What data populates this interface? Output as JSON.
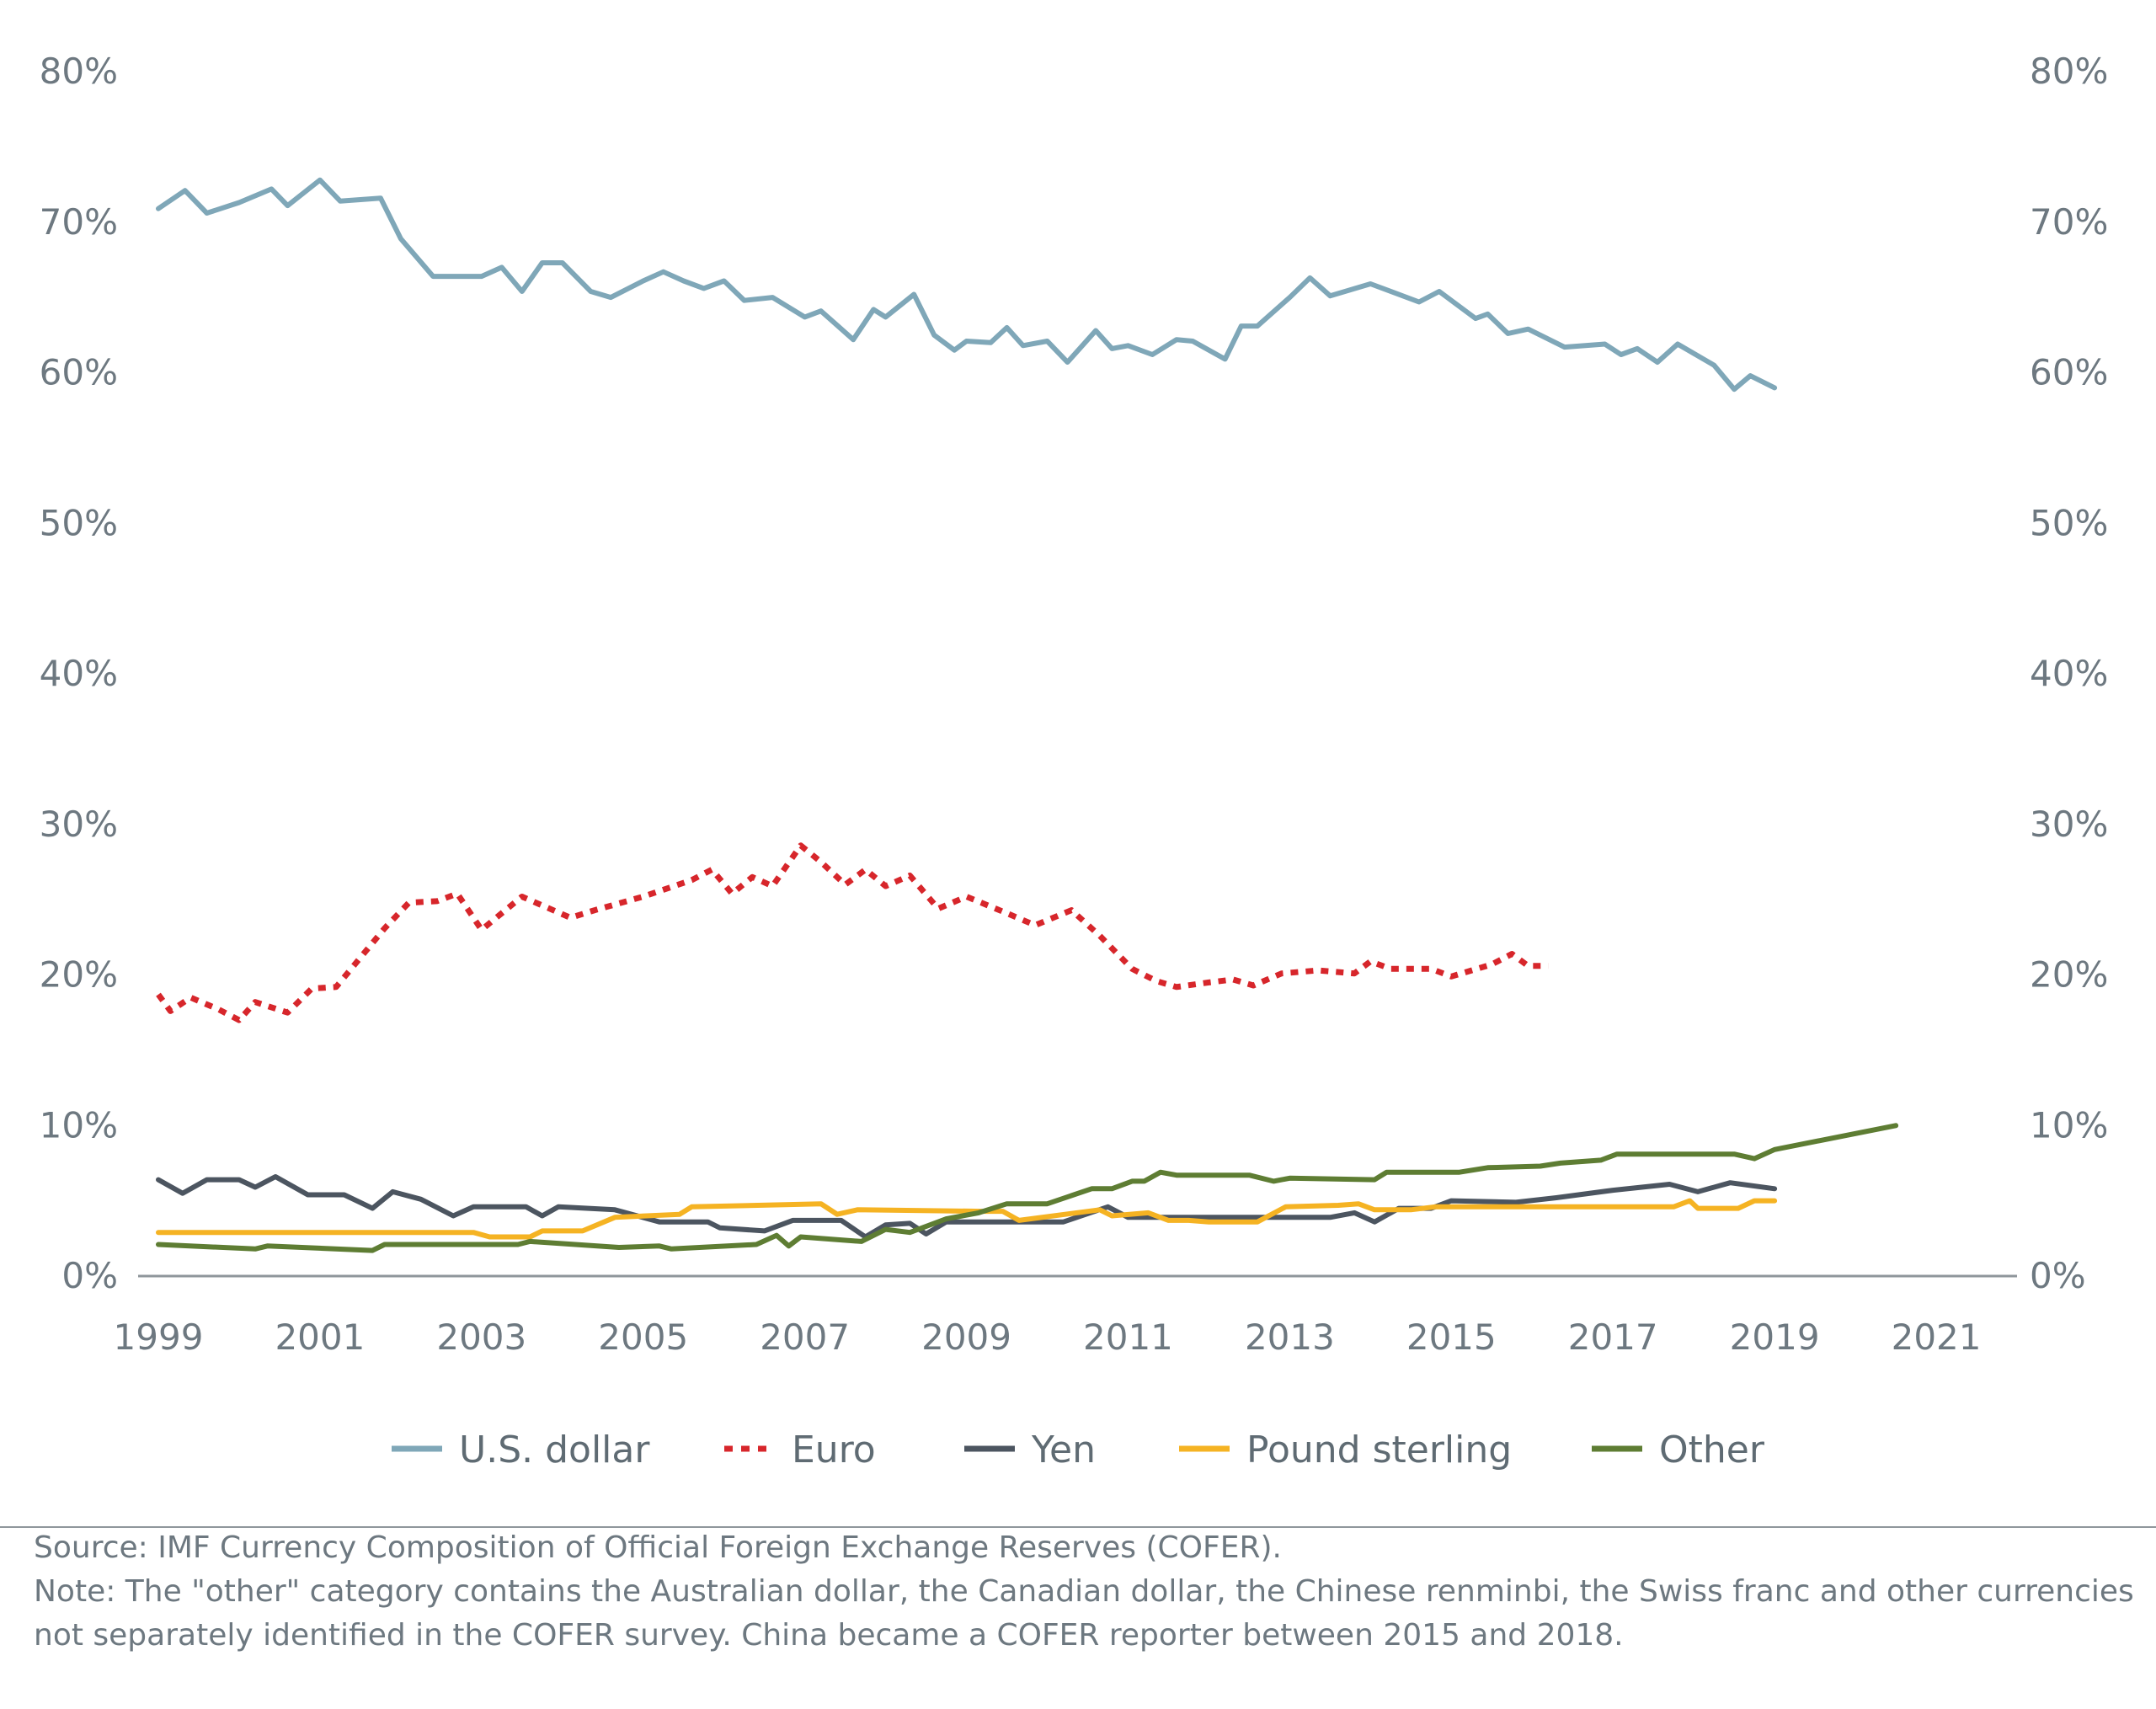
{
  "chart_data": {
    "type": "line",
    "title": "",
    "xlabel": "",
    "ylabel": "",
    "x_tick_labels": [
      "1999",
      "2001",
      "2003",
      "2005",
      "2007",
      "2009",
      "2011",
      "2013",
      "2015",
      "2017",
      "2019",
      "2021"
    ],
    "y_tick_labels": [
      "0%",
      "10%",
      "20%",
      "30%",
      "40%",
      "50%",
      "60%",
      "70%",
      "80%"
    ],
    "ylim": [
      0,
      80
    ],
    "xlim": [
      1998.75,
      2022.0
    ],
    "secondary_y_axis": true,
    "grid": false,
    "legend_position": "bottom",
    "series": [
      {
        "name": "U.S. dollar",
        "color": "#7fa7b8",
        "dash": "solid",
        "points": [
          [
            1999.0,
            70.9
          ],
          [
            1999.33,
            72.1
          ],
          [
            1999.6,
            70.6
          ],
          [
            2000.0,
            71.3
          ],
          [
            2000.4,
            72.2
          ],
          [
            2000.6,
            71.1
          ],
          [
            2001.0,
            72.8
          ],
          [
            2001.25,
            71.4
          ],
          [
            2001.75,
            71.6
          ],
          [
            2002.0,
            68.9
          ],
          [
            2002.4,
            66.4
          ],
          [
            2003.0,
            66.4
          ],
          [
            2003.25,
            67.0
          ],
          [
            2003.5,
            65.4
          ],
          [
            2003.75,
            67.3
          ],
          [
            2004.0,
            67.3
          ],
          [
            2004.35,
            65.4
          ],
          [
            2004.6,
            65.0
          ],
          [
            2005.0,
            66.1
          ],
          [
            2005.25,
            66.7
          ],
          [
            2005.5,
            66.1
          ],
          [
            2005.75,
            65.6
          ],
          [
            2006.0,
            66.1
          ],
          [
            2006.25,
            64.8
          ],
          [
            2006.6,
            65.0
          ],
          [
            2007.0,
            63.7
          ],
          [
            2007.2,
            64.1
          ],
          [
            2007.6,
            62.2
          ],
          [
            2007.85,
            64.2
          ],
          [
            2008.0,
            63.7
          ],
          [
            2008.35,
            65.2
          ],
          [
            2008.6,
            62.5
          ],
          [
            2008.85,
            61.5
          ],
          [
            2009.0,
            62.1
          ],
          [
            2009.3,
            62.0
          ],
          [
            2009.5,
            63.0
          ],
          [
            2009.7,
            61.8
          ],
          [
            2010.0,
            62.1
          ],
          [
            2010.25,
            60.7
          ],
          [
            2010.6,
            62.8
          ],
          [
            2010.8,
            61.6
          ],
          [
            2011.0,
            61.8
          ],
          [
            2011.3,
            61.2
          ],
          [
            2011.6,
            62.2
          ],
          [
            2011.8,
            62.1
          ],
          [
            2012.2,
            60.9
          ],
          [
            2012.4,
            63.1
          ],
          [
            2012.6,
            63.1
          ],
          [
            2013.0,
            65.0
          ],
          [
            2013.25,
            66.3
          ],
          [
            2013.5,
            65.1
          ],
          [
            2014.0,
            65.9
          ],
          [
            2014.6,
            64.7
          ],
          [
            2014.85,
            65.4
          ],
          [
            2015.3,
            63.6
          ],
          [
            2015.45,
            63.9
          ],
          [
            2015.7,
            62.6
          ],
          [
            2015.95,
            62.9
          ],
          [
            2016.4,
            61.7
          ],
          [
            2016.9,
            61.9
          ],
          [
            2017.1,
            61.2
          ],
          [
            2017.3,
            61.6
          ],
          [
            2017.55,
            60.7
          ],
          [
            2017.8,
            61.9
          ],
          [
            2018.25,
            60.5
          ],
          [
            2018.5,
            58.9
          ],
          [
            2018.7,
            59.8
          ],
          [
            2019.0,
            59.0
          ]
        ]
      },
      {
        "name": "Euro",
        "color": "#d7262b",
        "dash": "dotted",
        "points": [
          [
            1999.0,
            18.7
          ],
          [
            1999.15,
            17.6
          ],
          [
            1999.4,
            18.5
          ],
          [
            1999.75,
            17.7
          ],
          [
            2000.0,
            17.0
          ],
          [
            2000.2,
            18.2
          ],
          [
            2000.6,
            17.5
          ],
          [
            2000.9,
            19.1
          ],
          [
            2001.2,
            19.2
          ],
          [
            2001.8,
            23.1
          ],
          [
            2002.1,
            24.8
          ],
          [
            2002.45,
            24.9
          ],
          [
            2002.7,
            25.4
          ],
          [
            2003.0,
            23.0
          ],
          [
            2003.5,
            25.2
          ],
          [
            2004.1,
            23.8
          ],
          [
            2004.4,
            24.3
          ],
          [
            2005.0,
            25.2
          ],
          [
            2005.6,
            26.3
          ],
          [
            2005.85,
            27.0
          ],
          [
            2006.1,
            25.4
          ],
          [
            2006.35,
            26.5
          ],
          [
            2006.6,
            25.9
          ],
          [
            2006.95,
            28.6
          ],
          [
            2007.2,
            27.5
          ],
          [
            2007.5,
            26.0
          ],
          [
            2007.75,
            27.0
          ],
          [
            2008.0,
            25.9
          ],
          [
            2008.3,
            26.6
          ],
          [
            2008.65,
            24.4
          ],
          [
            2009.0,
            25.2
          ],
          [
            2009.5,
            24.1
          ],
          [
            2009.85,
            23.3
          ],
          [
            2010.3,
            24.3
          ],
          [
            2010.65,
            22.6
          ],
          [
            2011.05,
            20.4
          ],
          [
            2011.35,
            19.6
          ],
          [
            2011.6,
            19.2
          ],
          [
            2012.0,
            19.5
          ],
          [
            2012.3,
            19.7
          ],
          [
            2012.55,
            19.3
          ],
          [
            2012.9,
            20.1
          ],
          [
            2013.35,
            20.3
          ],
          [
            2013.8,
            20.1
          ],
          [
            2014.0,
            20.9
          ],
          [
            2014.25,
            20.4
          ],
          [
            2014.75,
            20.4
          ],
          [
            2015.0,
            19.9
          ],
          [
            2015.5,
            20.7
          ],
          [
            2015.75,
            21.4
          ],
          [
            2015.95,
            20.6
          ],
          [
            2016.2,
            20.6
          ]
        ]
      },
      {
        "name": "Yen",
        "color": "#4c5560",
        "dash": "solid",
        "points": [
          [
            1999.0,
            6.4
          ],
          [
            1999.3,
            5.5
          ],
          [
            1999.6,
            6.4
          ],
          [
            2000.0,
            6.4
          ],
          [
            2000.2,
            5.9
          ],
          [
            2000.45,
            6.6
          ],
          [
            2000.85,
            5.4
          ],
          [
            2001.3,
            5.4
          ],
          [
            2001.65,
            4.5
          ],
          [
            2001.9,
            5.6
          ],
          [
            2002.25,
            5.1
          ],
          [
            2002.65,
            4.0
          ],
          [
            2002.9,
            4.6
          ],
          [
            2003.55,
            4.6
          ],
          [
            2003.75,
            4.0
          ],
          [
            2003.95,
            4.6
          ],
          [
            2004.65,
            4.4
          ],
          [
            2005.2,
            3.6
          ],
          [
            2005.8,
            3.6
          ],
          [
            2005.95,
            3.2
          ],
          [
            2006.5,
            3.0
          ],
          [
            2006.85,
            3.7
          ],
          [
            2007.45,
            3.7
          ],
          [
            2007.75,
            2.6
          ],
          [
            2008.0,
            3.4
          ],
          [
            2008.3,
            3.5
          ],
          [
            2008.5,
            2.8
          ],
          [
            2008.75,
            3.6
          ],
          [
            2010.2,
            3.6
          ],
          [
            2010.75,
            4.6
          ],
          [
            2011.0,
            3.9
          ],
          [
            2012.0,
            3.9
          ],
          [
            2012.5,
            3.9
          ],
          [
            2013.0,
            3.9
          ],
          [
            2013.5,
            3.9
          ],
          [
            2013.8,
            4.2
          ],
          [
            2014.05,
            3.6
          ],
          [
            2014.35,
            4.5
          ],
          [
            2014.75,
            4.5
          ],
          [
            2015.0,
            5.0
          ],
          [
            2015.8,
            4.9
          ],
          [
            2016.3,
            5.2
          ],
          [
            2017.0,
            5.7
          ],
          [
            2017.7,
            6.1
          ],
          [
            2018.05,
            5.6
          ],
          [
            2018.45,
            6.2
          ],
          [
            2019.0,
            5.8
          ]
        ]
      },
      {
        "name": "Pound sterling",
        "color": "#f5b323",
        "dash": "solid",
        "points": [
          [
            1999.0,
            2.9
          ],
          [
            2002.9,
            2.9
          ],
          [
            2003.1,
            2.6
          ],
          [
            2003.6,
            2.6
          ],
          [
            2003.75,
            3.0
          ],
          [
            2004.25,
            3.0
          ],
          [
            2004.65,
            3.9
          ],
          [
            2005.45,
            4.1
          ],
          [
            2005.6,
            4.6
          ],
          [
            2007.2,
            4.8
          ],
          [
            2007.4,
            4.1
          ],
          [
            2007.65,
            4.4
          ],
          [
            2009.2,
            4.3
          ],
          [
            2009.45,
            4.3
          ],
          [
            2009.65,
            3.7
          ],
          [
            2010.65,
            4.4
          ],
          [
            2010.8,
            4.0
          ],
          [
            2011.25,
            4.2
          ],
          [
            2011.5,
            3.7
          ],
          [
            2011.75,
            3.7
          ],
          [
            2012.0,
            3.6
          ],
          [
            2012.6,
            3.6
          ],
          [
            2012.95,
            4.6
          ],
          [
            2013.6,
            4.7
          ],
          [
            2013.85,
            4.8
          ],
          [
            2014.05,
            4.4
          ],
          [
            2014.5,
            4.4
          ],
          [
            2014.8,
            4.6
          ],
          [
            2017.75,
            4.6
          ],
          [
            2017.95,
            5.0
          ],
          [
            2018.05,
            4.5
          ],
          [
            2018.55,
            4.5
          ],
          [
            2018.75,
            5.0
          ],
          [
            2019.0,
            5.0
          ]
        ]
      },
      {
        "name": "Other",
        "color": "#5e7d33",
        "dash": "solid",
        "points": [
          [
            1999.0,
            2.1
          ],
          [
            2000.2,
            1.8
          ],
          [
            2000.35,
            2.0
          ],
          [
            2001.65,
            1.7
          ],
          [
            2001.8,
            2.1
          ],
          [
            2002.9,
            2.1
          ],
          [
            2003.45,
            2.1
          ],
          [
            2003.6,
            2.3
          ],
          [
            2004.7,
            1.9
          ],
          [
            2005.2,
            2.0
          ],
          [
            2005.35,
            1.8
          ],
          [
            2006.4,
            2.1
          ],
          [
            2006.65,
            2.7
          ],
          [
            2006.8,
            2.0
          ],
          [
            2006.95,
            2.6
          ],
          [
            2007.7,
            2.3
          ],
          [
            2008.0,
            3.1
          ],
          [
            2008.3,
            2.9
          ],
          [
            2008.75,
            3.8
          ],
          [
            2009.15,
            4.2
          ],
          [
            2009.5,
            4.8
          ],
          [
            2010.0,
            4.8
          ],
          [
            2010.55,
            5.8
          ],
          [
            2010.8,
            5.8
          ],
          [
            2011.05,
            6.3
          ],
          [
            2011.2,
            6.3
          ],
          [
            2011.4,
            6.9
          ],
          [
            2011.6,
            6.7
          ],
          [
            2012.5,
            6.7
          ],
          [
            2012.8,
            6.3
          ],
          [
            2013.0,
            6.5
          ],
          [
            2014.05,
            6.4
          ],
          [
            2014.2,
            6.9
          ],
          [
            2015.1,
            6.9
          ],
          [
            2015.45,
            7.2
          ],
          [
            2016.1,
            7.3
          ],
          [
            2016.35,
            7.5
          ],
          [
            2016.85,
            7.7
          ],
          [
            2017.05,
            8.1
          ],
          [
            2018.5,
            8.1
          ],
          [
            2018.75,
            7.8
          ],
          [
            2019.0,
            8.4
          ],
          [
            2020.5,
            10.0
          ]
        ]
      }
    ]
  },
  "notes": {
    "source": "Source: IMF Currency Composition of Official Foreign Exchange Reserves (COFER).",
    "note_line1": "Note: The \"other\" category contains the Australian dollar, the Canadian dollar, the Chinese renminbi, the Swiss franc and other currencies",
    "note_line2": "not separately identified in the COFER survey. China became a COFER reporter between 2015 and 2018."
  }
}
